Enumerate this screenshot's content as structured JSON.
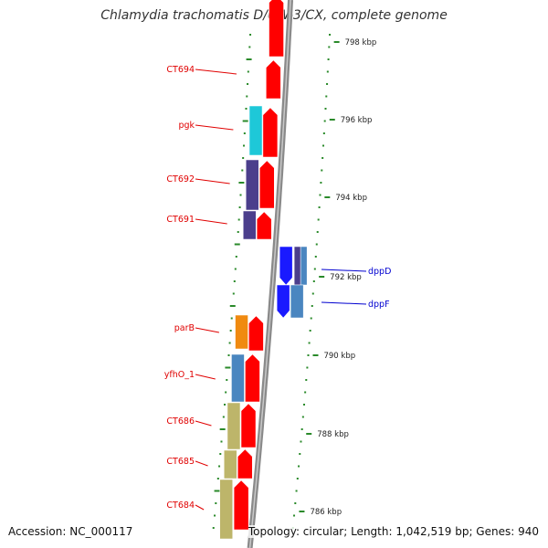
{
  "title": "Chlamydia trachomatis D/UW-3/CX, complete genome",
  "footer": {
    "accession": "Accession: NC_000117",
    "summary": "Topology: circular; Length: 1,042,519 bp; Genes: 940"
  },
  "colors": {
    "backbone": "#8a8a8a",
    "tick": "#2a8a2a",
    "gene_red": "#ff0000",
    "gene_cyan": "#1ec8d8",
    "gene_purple": "#4b3e8c",
    "gene_orange": "#f08a10",
    "gene_steelblue": "#4a86c0",
    "gene_khaki": "#bdb56a",
    "gene_blue": "#1a1aff",
    "label_red": "#e00000",
    "label_blue": "#0000d0"
  },
  "left_labels": [
    {
      "text": "CT694",
      "color": "label_red"
    },
    {
      "text": "pgk",
      "color": "label_red"
    },
    {
      "text": "CT692",
      "color": "label_red"
    },
    {
      "text": "CT691",
      "color": "label_red"
    },
    {
      "text": "parB",
      "color": "label_red"
    },
    {
      "text": "yfhO_1",
      "color": "label_red"
    },
    {
      "text": "CT686",
      "color": "label_red"
    },
    {
      "text": "CT685",
      "color": "label_red"
    },
    {
      "text": "CT684",
      "color": "label_red"
    }
  ],
  "right_labels": [
    {
      "text": "dppD",
      "color": "label_blue"
    },
    {
      "text": "dppF",
      "color": "label_blue"
    }
  ],
  "kbp_ticks": [
    "798 kbp",
    "796 kbp",
    "794 kbp",
    "792 kbp",
    "790 kbp",
    "788 kbp",
    "786 kbp"
  ]
}
